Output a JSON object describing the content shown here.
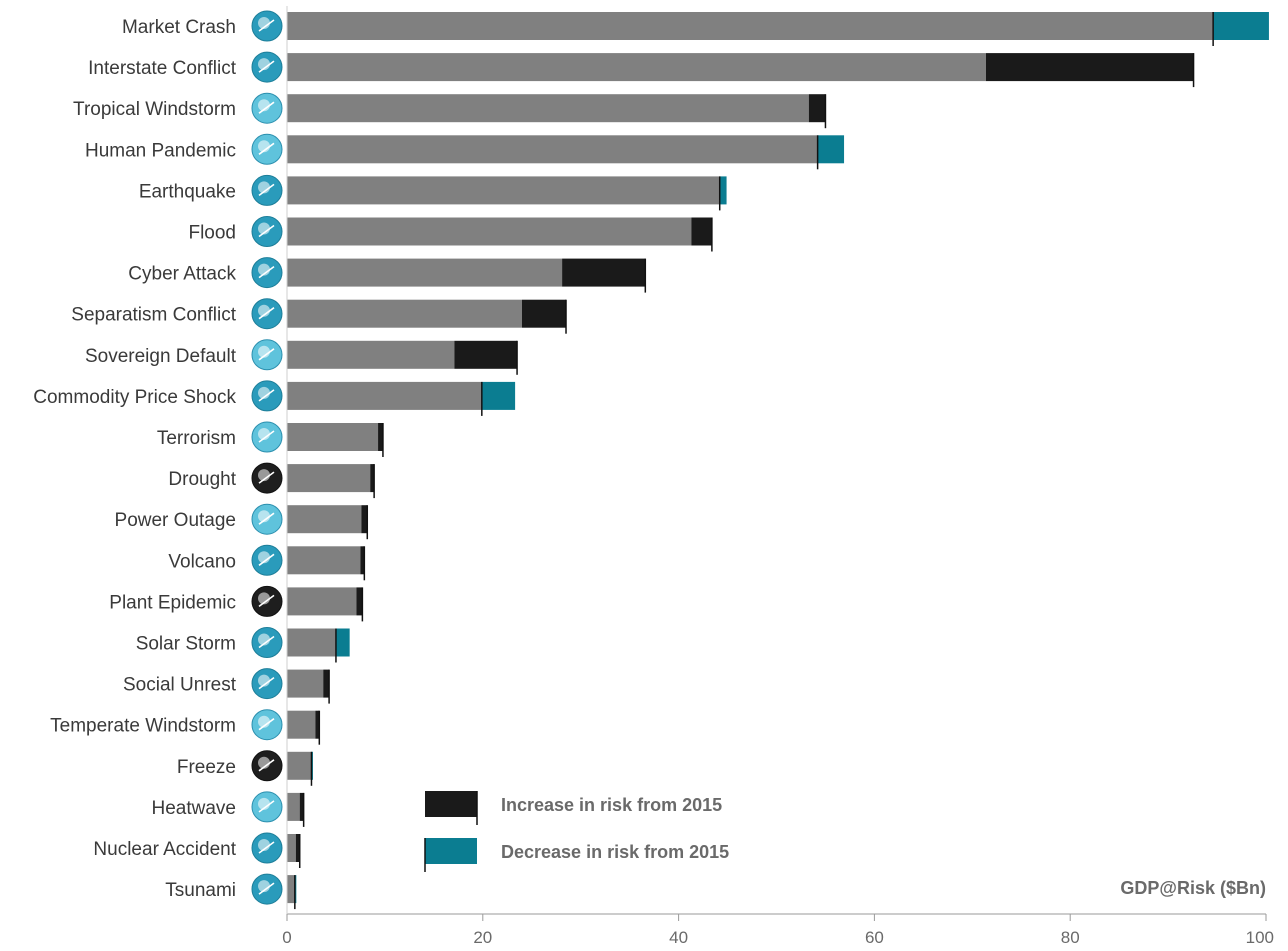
{
  "chart_data": {
    "type": "bar",
    "orientation": "horizontal",
    "stacked": true,
    "unit_label": "GDP@Risk ($Bn)",
    "xlim": [
      0,
      100
    ],
    "xticks": [
      "0",
      "20",
      "40",
      "60",
      "80",
      "100"
    ],
    "grid": false,
    "legend_position": "bottom-center",
    "colors": {
      "base": "#808080",
      "increase": "#1a1a1a",
      "decrease": "#0b7d91"
    },
    "legend": [
      {
        "kind": "increase",
        "label": "Increase in risk from 2015"
      },
      {
        "kind": "decrease",
        "label": "Decrease in risk from 2015"
      }
    ],
    "categories": [
      {
        "name": "Market Crash",
        "icon": "market-crash-icon",
        "current": 94.6,
        "previous": 100.3
      },
      {
        "name": "Interstate Conflict",
        "icon": "interstate-conflict-icon",
        "current": 92.6,
        "previous": 71.4
      },
      {
        "name": "Tropical Windstorm",
        "icon": "tropical-windstorm-icon",
        "current": 55.0,
        "previous": 53.3
      },
      {
        "name": "Human Pandemic",
        "icon": "human-pandemic-icon",
        "current": 54.2,
        "previous": 56.9
      },
      {
        "name": "Earthquake",
        "icon": "earthquake-icon",
        "current": 44.2,
        "previous": 44.9
      },
      {
        "name": "Flood",
        "icon": "flood-icon",
        "current": 43.4,
        "previous": 41.3
      },
      {
        "name": "Cyber Attack",
        "icon": "cyber-attack-icon",
        "current": 36.6,
        "previous": 28.1
      },
      {
        "name": "Separatism Conflict",
        "icon": "separatism-conflict-icon",
        "current": 28.5,
        "previous": 24.0
      },
      {
        "name": "Sovereign Default",
        "icon": "sovereign-default-icon",
        "current": 23.5,
        "previous": 17.1
      },
      {
        "name": "Commodity Price Shock",
        "icon": "commodity-price-shock-icon",
        "current": 19.9,
        "previous": 23.3
      },
      {
        "name": "Terrorism",
        "icon": "terrorism-icon",
        "current": 9.8,
        "previous": 9.3
      },
      {
        "name": "Drought",
        "icon": "drought-icon",
        "current": 8.9,
        "previous": 8.5
      },
      {
        "name": "Power Outage",
        "icon": "power-outage-icon",
        "current": 8.2,
        "previous": 7.6
      },
      {
        "name": "Volcano",
        "icon": "volcano-icon",
        "current": 7.9,
        "previous": 7.5
      },
      {
        "name": "Plant Epidemic",
        "icon": "plant-epidemic-icon",
        "current": 7.7,
        "previous": 7.1
      },
      {
        "name": "Solar Storm",
        "icon": "solar-storm-icon",
        "current": 5.0,
        "previous": 6.4
      },
      {
        "name": "Social Unrest",
        "icon": "social-unrest-icon",
        "current": 4.3,
        "previous": 3.7
      },
      {
        "name": "Temperate Windstorm",
        "icon": "temperate-windstorm-icon",
        "current": 3.3,
        "previous": 2.9
      },
      {
        "name": "Freeze",
        "icon": "freeze-icon",
        "current": 2.5,
        "previous": 2.6
      },
      {
        "name": "Heatwave",
        "icon": "heatwave-icon",
        "current": 1.7,
        "previous": 1.3
      },
      {
        "name": "Nuclear Accident",
        "icon": "nuclear-accident-icon",
        "current": 1.3,
        "previous": 0.9
      },
      {
        "name": "Tsunami",
        "icon": "tsunami-icon",
        "current": 0.8,
        "previous": 0.9
      }
    ]
  }
}
